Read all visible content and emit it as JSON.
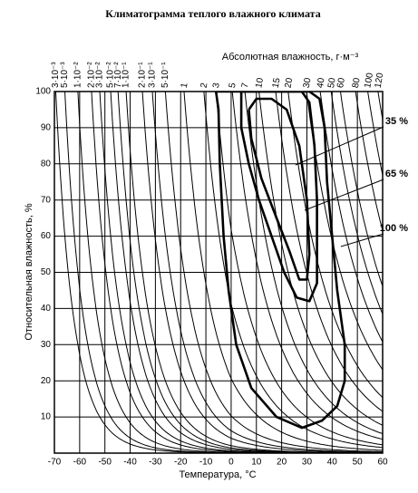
{
  "chart_data": {
    "type": "climatogram",
    "title": "Климатограмма теплого влажного климата",
    "x_label": "Температура, °C",
    "y_label": "Относительная влажность, %",
    "x2_label": "Абсолютная влажность, г·м⁻³",
    "xlim": [
      -70,
      60
    ],
    "xticks": [
      -70,
      -60,
      -50,
      -40,
      -30,
      -20,
      -10,
      0,
      10,
      20,
      30,
      40,
      50,
      60
    ],
    "ylim": [
      0,
      100
    ],
    "yticks": [
      10,
      20,
      30,
      40,
      50,
      60,
      70,
      80,
      90,
      100
    ],
    "x2ticks": [
      {
        "value": 0.003,
        "label": "3·10⁻³"
      },
      {
        "value": 0.005,
        "label": "5·10⁻³"
      },
      {
        "value": 0.01,
        "label": "1·10⁻²"
      },
      {
        "value": 0.02,
        "label": "2·10⁻²"
      },
      {
        "value": 0.03,
        "label": "3·10⁻²"
      },
      {
        "value": 0.05,
        "label": "5·10⁻²"
      },
      {
        "value": 0.07,
        "label": "7·10⁻²"
      },
      {
        "value": 0.1,
        "label": "1·10⁻¹"
      },
      {
        "value": 0.2,
        "label": "2·10⁻¹"
      },
      {
        "value": 0.3,
        "label": "3·10⁻¹"
      },
      {
        "value": 0.5,
        "label": "5·10⁻¹"
      },
      1,
      2,
      3,
      5,
      7,
      10,
      15,
      20,
      30,
      40,
      50,
      60,
      80,
      100,
      120
    ],
    "grid": true,
    "series": [
      {
        "name": "35 %",
        "color": "#000000",
        "x": [
          7,
          10,
          16,
          22,
          27,
          30,
          31,
          30,
          27,
          23,
          18,
          12,
          8,
          7
        ],
        "y": [
          95,
          98,
          98,
          95,
          85,
          70,
          55,
          48,
          48,
          56,
          65,
          76,
          87,
          95
        ]
      },
      {
        "name": "65 %",
        "color": "#000000",
        "x": [
          4,
          4,
          7,
          11,
          16,
          21,
          26,
          31,
          34,
          34,
          34,
          33,
          31,
          28,
          4
        ],
        "y": [
          100,
          90,
          80,
          70,
          60,
          50,
          43,
          42,
          47,
          55,
          70,
          85,
          97,
          100,
          100
        ]
      },
      {
        "name": "100 %",
        "color": "#000000",
        "x": [
          -6,
          -5,
          -4.5,
          -3,
          -1,
          2,
          8,
          18,
          28,
          36,
          42,
          45,
          45,
          42,
          40,
          38,
          37,
          35,
          31,
          10,
          -6
        ],
        "y": [
          100,
          95,
          80,
          60,
          45,
          30,
          18,
          10,
          7,
          9,
          13,
          20,
          30,
          45,
          60,
          75,
          90,
          98,
          100,
          100,
          100
        ]
      }
    ]
  }
}
